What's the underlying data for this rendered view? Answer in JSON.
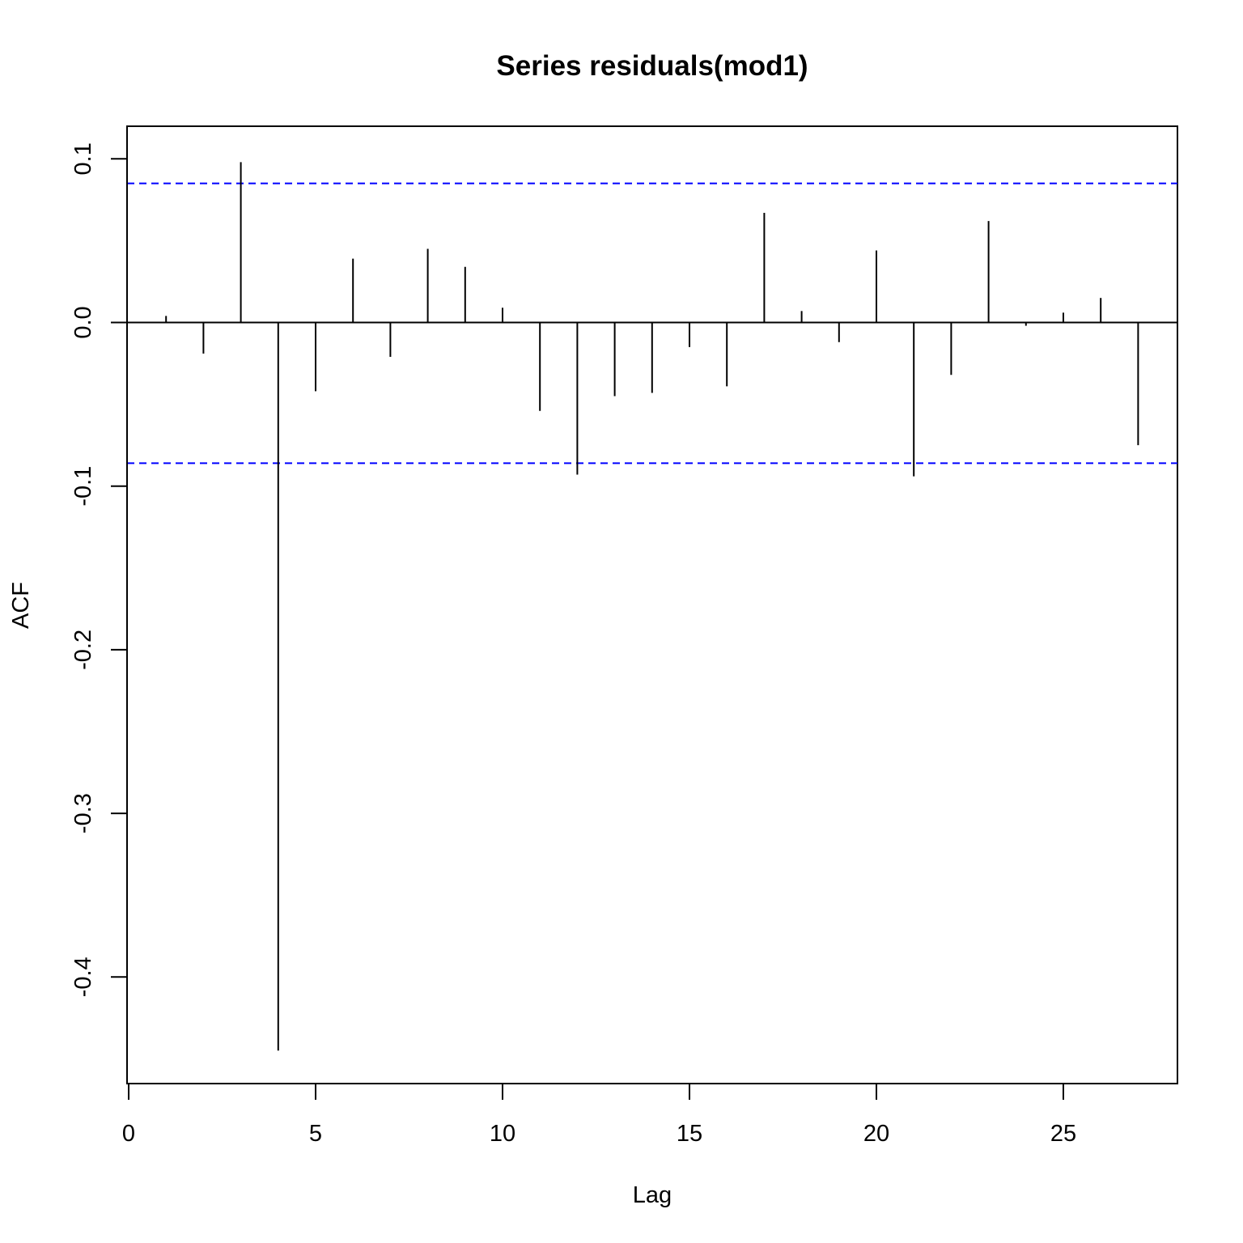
{
  "chart_data": {
    "type": "bar",
    "title": "Series residuals(mod1)",
    "xlabel": "Lag",
    "ylabel": "ACF",
    "xlim": [
      0,
      28
    ],
    "ylim": [
      -0.465,
      0.12
    ],
    "x_ticks": [
      0,
      5,
      10,
      15,
      20,
      25
    ],
    "x_tick_labels": [
      "0",
      "5",
      "10",
      "15",
      "20",
      "25"
    ],
    "y_ticks": [
      -0.4,
      -0.3,
      -0.2,
      -0.1,
      0.0,
      0.1
    ],
    "y_tick_labels": [
      "-0.4",
      "-0.3",
      "-0.2",
      "-0.1",
      "0.0",
      "0.1"
    ],
    "confidence_bounds": [
      0.085,
      -0.086
    ],
    "series": [
      {
        "lags": [
          1,
          2,
          3,
          4,
          5,
          6,
          7,
          8,
          9,
          10,
          11,
          12,
          13,
          14,
          15,
          16,
          17,
          18,
          19,
          20,
          21,
          22,
          23,
          24,
          25,
          26,
          27
        ],
        "values": [
          0.004,
          -0.019,
          0.098,
          -0.445,
          -0.042,
          0.039,
          -0.021,
          0.045,
          0.034,
          0.009,
          -0.054,
          -0.093,
          -0.045,
          -0.043,
          -0.015,
          -0.039,
          0.067,
          0.007,
          -0.012,
          0.044,
          -0.094,
          -0.032,
          0.062,
          -0.002,
          0.006,
          0.015,
          -0.075
        ]
      }
    ],
    "grid": false,
    "colors": {
      "bars": "#000000",
      "confidence_lines": "#0000ff"
    }
  }
}
